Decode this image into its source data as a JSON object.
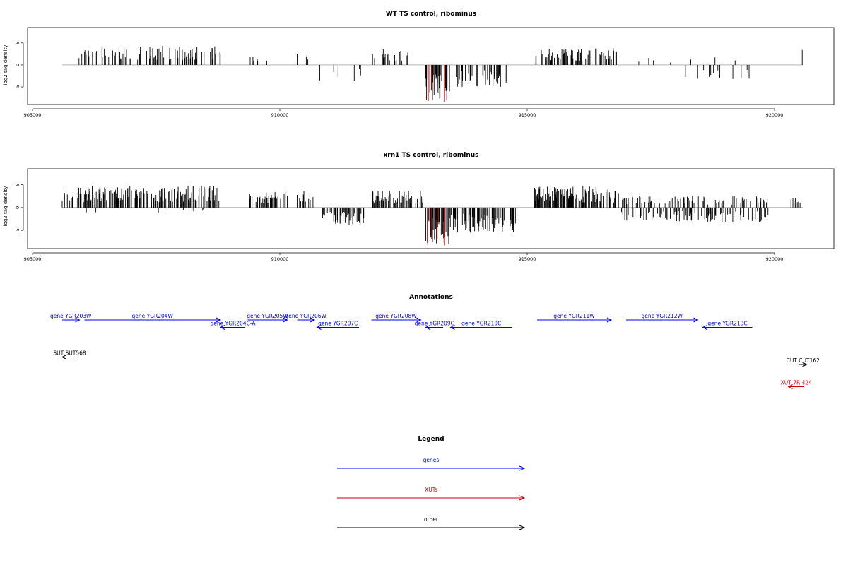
{
  "chart_data": [
    {
      "type": "bar",
      "title": "WT TS control, ribominus",
      "ylabel": "log2 tag density",
      "xlim": [
        904900,
        921200
      ],
      "ylim": [
        -9,
        8.5
      ],
      "x_ticks": [
        905000,
        910000,
        915000,
        920000
      ],
      "y_ticks": [
        -5,
        0,
        5
      ],
      "highlight_color": "#cc0000",
      "bar_color": "#000000",
      "segments": [
        {
          "x0": 905600,
          "x1": 905800,
          "avg": 1.2,
          "density": 0.05,
          "sign": 1
        },
        {
          "x0": 905900,
          "x1": 908800,
          "avg": 3.0,
          "density": 0.28,
          "sign": 1
        },
        {
          "x0": 909400,
          "x1": 909950,
          "avg": 1.3,
          "density": 0.05,
          "sign": 1
        },
        {
          "x0": 910350,
          "x1": 910650,
          "avg": 1.8,
          "density": 0.12,
          "sign": 1
        },
        {
          "x0": 910800,
          "x1": 911650,
          "avg": -2.5,
          "density": 0.07,
          "sign": -1
        },
        {
          "x0": 911850,
          "x1": 912700,
          "avg": 2.6,
          "density": 0.15,
          "sign": 1
        },
        {
          "x0": 912950,
          "x1": 913450,
          "avg": -5.8,
          "density": 0.45,
          "sign": -1
        },
        {
          "x0": 913550,
          "x1": 914600,
          "avg": -3.5,
          "density": 0.3,
          "sign": -1
        },
        {
          "x0": 915150,
          "x1": 916850,
          "avg": 2.6,
          "density": 0.28,
          "sign": 1
        },
        {
          "x0": 917200,
          "x1": 918000,
          "avg": 1.5,
          "density": 0.04,
          "sign": 1
        },
        {
          "x0": 918150,
          "x1": 919500,
          "avg": -2.3,
          "density": 0.06,
          "sign": -1
        },
        {
          "x0": 918300,
          "x1": 919300,
          "avg": 1.5,
          "density": 0.025,
          "sign": 1
        },
        {
          "x0": 920520,
          "x1": 920570,
          "avg": 2.5,
          "density": 0.4,
          "sign": 1
        }
      ],
      "highlights": [
        {
          "x": 913000,
          "y": -8.2
        },
        {
          "x": 913080,
          "y": -5.5
        },
        {
          "x": 913330,
          "y": -8.4
        }
      ]
    },
    {
      "type": "bar",
      "title": "xrn1 TS control, ribominus",
      "ylabel": "log2 tag density",
      "xlim": [
        904900,
        921200
      ],
      "ylim": [
        -9,
        8.5
      ],
      "x_ticks": [
        905000,
        910000,
        915000,
        920000
      ],
      "y_ticks": [
        -5,
        0,
        5
      ],
      "highlight_color": "#cc0000",
      "bar_color": "#000000",
      "segments": [
        {
          "x0": 905600,
          "x1": 908800,
          "avg": 3.3,
          "density": 0.42,
          "sign": 1
        },
        {
          "x0": 905600,
          "x1": 908800,
          "avg": -0.8,
          "density": 0.03,
          "sign": -1
        },
        {
          "x0": 909350,
          "x1": 910150,
          "avg": 2.4,
          "density": 0.35,
          "sign": 1
        },
        {
          "x0": 910350,
          "x1": 910800,
          "avg": 2.6,
          "density": 0.2,
          "sign": 1
        },
        {
          "x0": 910800,
          "x1": 911700,
          "avg": -2.6,
          "density": 0.3,
          "sign": -1
        },
        {
          "x0": 911850,
          "x1": 912900,
          "avg": 2.6,
          "density": 0.4,
          "sign": 1
        },
        {
          "x0": 912950,
          "x1": 913450,
          "avg": -5.6,
          "density": 0.55,
          "sign": -1
        },
        {
          "x0": 913450,
          "x1": 914800,
          "avg": -3.8,
          "density": 0.45,
          "sign": -1
        },
        {
          "x0": 914900,
          "x1": 915100,
          "avg": -1.0,
          "density": 0.05,
          "sign": -1
        },
        {
          "x0": 915150,
          "x1": 916850,
          "avg": 3.2,
          "density": 0.45,
          "sign": 1
        },
        {
          "x0": 916900,
          "x1": 919900,
          "avg": 1.8,
          "density": 0.18,
          "sign": 1
        },
        {
          "x0": 916900,
          "x1": 919900,
          "avg": -2.2,
          "density": 0.25,
          "sign": -1
        },
        {
          "x0": 920300,
          "x1": 920570,
          "avg": 1.8,
          "density": 0.15,
          "sign": 1
        }
      ],
      "highlights": [
        {
          "x": 912990,
          "y": -8.2
        },
        {
          "x": 913060,
          "y": -6.5
        },
        {
          "x": 913180,
          "y": -7.0
        },
        {
          "x": 913330,
          "y": -8.3
        }
      ]
    }
  ],
  "annotations": {
    "title": "Annotations",
    "xlim": [
      904900,
      921200
    ],
    "genes": [
      {
        "label": "gene YGR203W",
        "x0": 905600,
        "x1": 905950,
        "strand": "+",
        "row": 0,
        "color": "#0000ff"
      },
      {
        "label": "gene YGR204W",
        "x0": 906050,
        "x1": 908800,
        "strand": "+",
        "row": 0,
        "color": "#0000ff"
      },
      {
        "label": "gene YGR204C-A",
        "x0": 908800,
        "x1": 909300,
        "strand": "-",
        "row": 1,
        "color": "#0000ff"
      },
      {
        "label": "gene YGR205W",
        "x0": 909350,
        "x1": 910150,
        "strand": "+",
        "row": 0,
        "color": "#0000ff"
      },
      {
        "label": "gene YGR206W",
        "x0": 910350,
        "x1": 910700,
        "strand": "+",
        "row": 0,
        "color": "#0000ff"
      },
      {
        "label": "gene YGR207C",
        "x0": 910750,
        "x1": 911600,
        "strand": "-",
        "row": 1,
        "color": "#0000ff"
      },
      {
        "label": "gene YGR208W",
        "x0": 911850,
        "x1": 912850,
        "strand": "+",
        "row": 0,
        "color": "#0000ff"
      },
      {
        "label": "gene YGR209C",
        "x0": 912950,
        "x1": 913300,
        "strand": "-",
        "row": 1,
        "color": "#0000ff"
      },
      {
        "label": "gene YGR210C",
        "x0": 913450,
        "x1": 914700,
        "strand": "-",
        "row": 1,
        "color": "#0000ff"
      },
      {
        "label": "gene YGR211W",
        "x0": 915200,
        "x1": 916700,
        "strand": "+",
        "row": 0,
        "color": "#0000ff"
      },
      {
        "label": "gene YGR212W",
        "x0": 917000,
        "x1": 918450,
        "strand": "+",
        "row": 0,
        "color": "#0000ff"
      },
      {
        "label": "gene YGR213C",
        "x0": 918550,
        "x1": 919550,
        "strand": "-",
        "row": 1,
        "color": "#0000ff"
      },
      {
        "label": "SUT SUT568",
        "x0": 905600,
        "x1": 905900,
        "strand": "-",
        "row": 5,
        "color": "#000000"
      },
      {
        "label": "CUT CUT162",
        "x0": 920500,
        "x1": 920650,
        "strand": "+",
        "row": 6,
        "color": "#000000"
      },
      {
        "label": "XUT 7R-424",
        "x0": 920280,
        "x1": 920600,
        "strand": "-",
        "row": 9,
        "color": "#cc0000"
      }
    ]
  },
  "legend": {
    "title": "Legend",
    "items": [
      {
        "label": "genes",
        "color": "#0000ff"
      },
      {
        "label": "XUTs",
        "color": "#cc0000"
      },
      {
        "label": "other",
        "color": "#000000"
      }
    ]
  }
}
